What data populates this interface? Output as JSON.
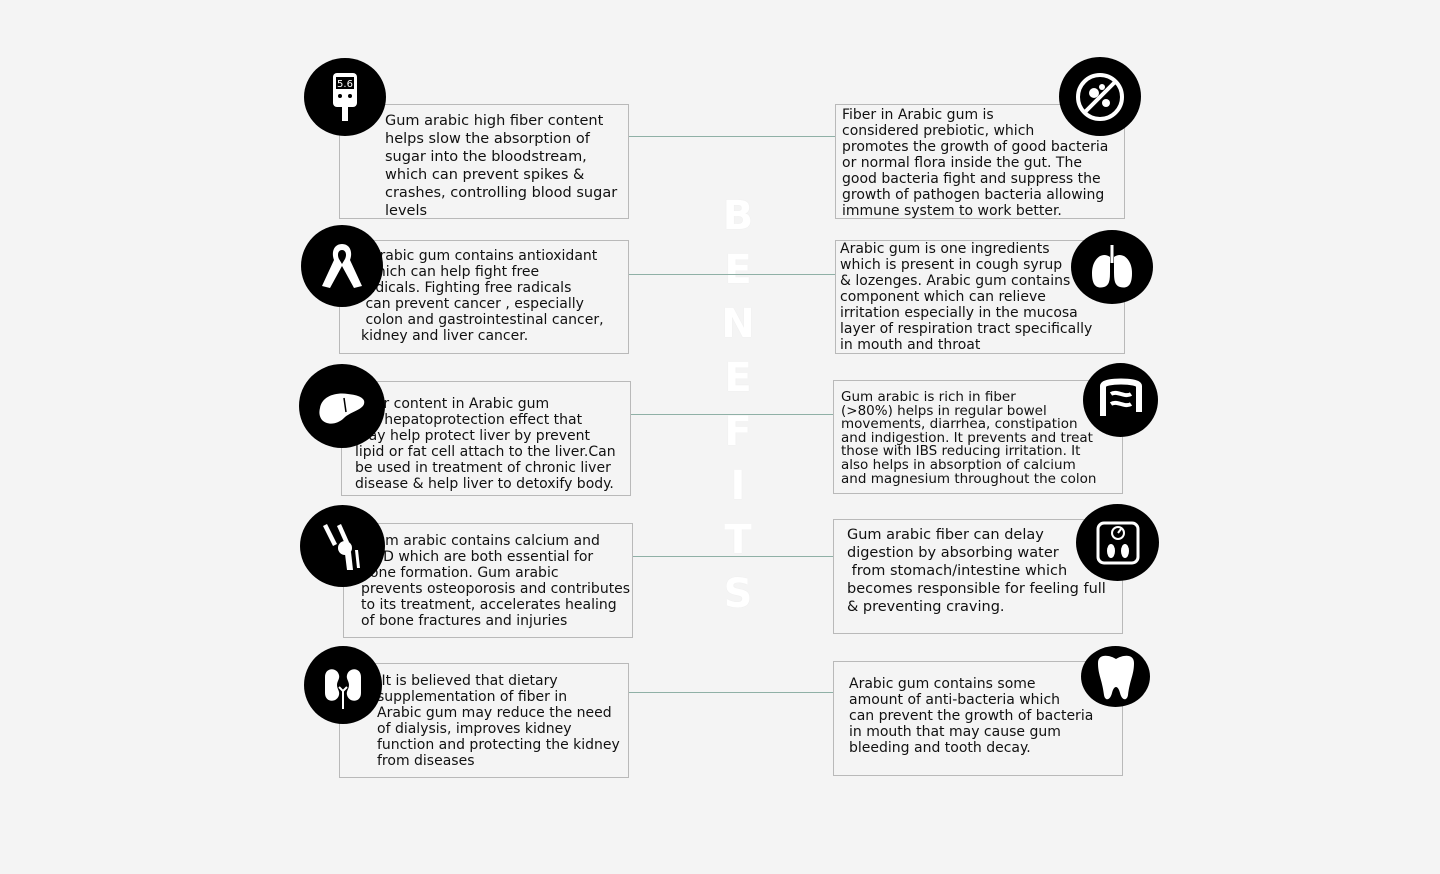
{
  "title": "BENEFITS",
  "colors": {
    "background": "#f4f4f4",
    "icon_fill": "#000000",
    "card_border": "#b9b9b9",
    "connector": "#8fb0a6"
  },
  "left": [
    {
      "icon": "glucose-meter-icon",
      "text": "Gum arabic high fiber content\nhelps slow the absorption of\nsugar into the bloodstream,\nwhich can prevent spikes &\ncrashes, controlling blood sugar\nlevels"
    },
    {
      "icon": "awareness-ribbon-icon",
      "text": "  Arabic gum contains antioxidant\n which can help fight free\nradicals. Fighting free radicals\n can prevent cancer , especially\n colon and gastrointestinal cancer,\nkidney and liver cancer."
    },
    {
      "icon": "liver-icon",
      "text": "Fiber content in Arabic gum\nhas hepatoprotection effect that\nmay help protect liver by prevent\nlipid or fat cell attach to the liver.Can\nbe used in treatment of chronic liver\ndisease & help liver to detoxify body."
    },
    {
      "icon": "knee-joint-icon",
      "text": " Gum arabic contains calcium and\nvit D which are both essential for\nbone formation. Gum arabic\nprevents osteoporosis and contributes\nto its treatment, accelerates healing\nof bone fractures and injuries"
    },
    {
      "icon": "kidneys-icon",
      "text": " It is believed that dietary\nsupplementation of fiber in\nArabic gum may reduce the need\nof dialysis, improves kidney\nfunction and protecting the kidney\nfrom diseases"
    }
  ],
  "right": [
    {
      "icon": "no-bacteria-icon",
      "text": "Fiber in Arabic gum is\nconsidered prebiotic, which\npromotes the growth of good bacteria\nor normal flora inside the gut. The\ngood bacteria fight and suppress the\ngrowth of pathogen bacteria allowing\nimmune system to work better."
    },
    {
      "icon": "lungs-icon",
      "text": "Arabic gum is one ingredients\nwhich is present in cough syrup\n& lozenges. Arabic gum contains\ncomponent which can relieve\nirritation especially in the mucosa\nlayer of respiration tract specifically\nin mouth and throat"
    },
    {
      "icon": "intestine-icon",
      "text": "Gum arabic is rich in fiber\n(>80%) helps in regular bowel\nmovements, diarrhea, constipation\nand indigestion. It prevents and treat\nthose with IBS reducing irritation. It\nalso helps in absorption of calcium\nand magnesium throughout the colon"
    },
    {
      "icon": "weight-scale-icon",
      "text": "Gum arabic fiber can delay\ndigestion by absorbing water\n from stomach/intestine which\nbecomes responsible for feeling full\n& preventing craving."
    },
    {
      "icon": "tooth-icon",
      "text": "Arabic gum contains some\namount of anti-bacteria which\ncan prevent the growth of bacteria\nin mouth that may cause gum\nbleeding and tooth decay."
    }
  ]
}
